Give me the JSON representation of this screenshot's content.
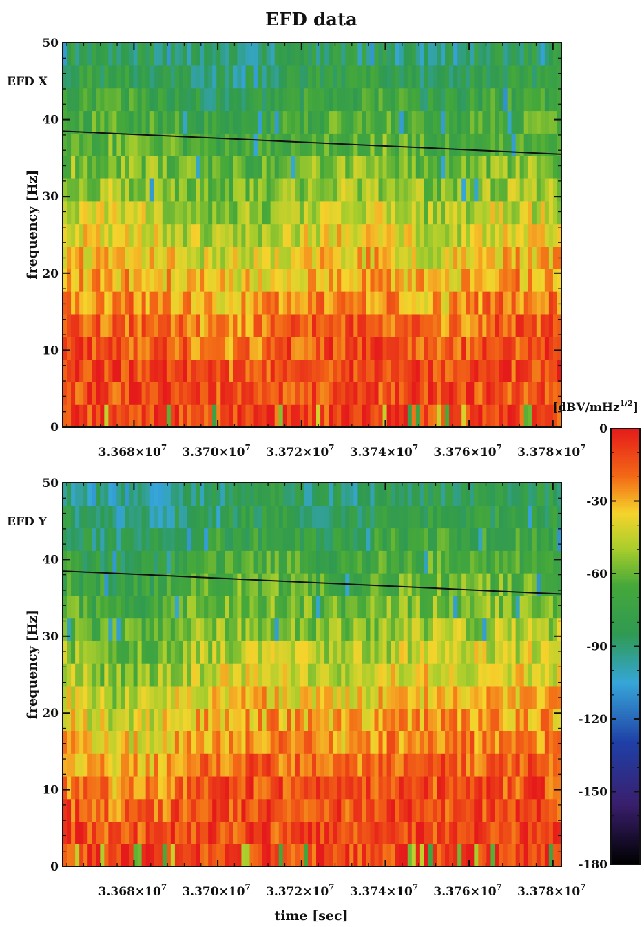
{
  "chart_data": {
    "type": "heatmap",
    "title": "EFD data",
    "colormap_stops": [
      {
        "value": 0,
        "color": "#e51a1a"
      },
      {
        "value": -20,
        "color": "#f36a16"
      },
      {
        "value": -35,
        "color": "#f5d42c"
      },
      {
        "value": -50,
        "color": "#a7cd2c"
      },
      {
        "value": -65,
        "color": "#45a83a"
      },
      {
        "value": -85,
        "color": "#2f9a52"
      },
      {
        "value": -105,
        "color": "#36a6d8"
      },
      {
        "value": -130,
        "color": "#1f3fa6"
      },
      {
        "value": -155,
        "color": "#3a1f6e"
      },
      {
        "value": -180,
        "color": "#000000"
      }
    ],
    "colorbar": {
      "label": "[dBV/mHz^1/2]",
      "label_main": "[dBV/mHz",
      "label_sup": "1/2",
      "label_end": "]",
      "range": [
        -180,
        0
      ],
      "ticks": [
        "0",
        "-30",
        "-60",
        "-90",
        "-120",
        "-150",
        "-180"
      ],
      "tick_values": [
        0,
        -30,
        -60,
        -90,
        -120,
        -150,
        -180
      ]
    },
    "time_bins": 120,
    "freq_bins": 17,
    "panels": [
      {
        "label": "EFD X",
        "ylabel": "frequency [Hz]",
        "xlabel": "",
        "xlim": [
          33663000,
          33782000
        ],
        "ylim": [
          0,
          50
        ],
        "x_ticks": [
          {
            "value": 33680000,
            "mantissa": "3.368",
            "exp": "7"
          },
          {
            "value": 33700000,
            "mantissa": "3.370",
            "exp": "7"
          },
          {
            "value": 33720000,
            "mantissa": "3.372",
            "exp": "7"
          },
          {
            "value": 33740000,
            "mantissa": "3.374",
            "exp": "7"
          },
          {
            "value": 33760000,
            "mantissa": "3.376",
            "exp": "7"
          },
          {
            "value": 33780000,
            "mantissa": "3.378",
            "exp": "7"
          }
        ],
        "y_ticks": [
          0,
          10,
          20,
          30,
          40,
          50
        ],
        "overlay_line": {
          "x": [
            33663000,
            33782000
          ],
          "y": [
            38.5,
            35.5
          ]
        },
        "seed": 17
      },
      {
        "label": "EFD Y",
        "ylabel": "frequency [Hz]",
        "xlabel": "time [sec]",
        "xlim": [
          33663000,
          33782000
        ],
        "ylim": [
          0,
          50
        ],
        "x_ticks": [
          {
            "value": 33680000,
            "mantissa": "3.368",
            "exp": "7"
          },
          {
            "value": 33700000,
            "mantissa": "3.370",
            "exp": "7"
          },
          {
            "value": 33720000,
            "mantissa": "3.372",
            "exp": "7"
          },
          {
            "value": 33740000,
            "mantissa": "3.374",
            "exp": "7"
          },
          {
            "value": 33760000,
            "mantissa": "3.376",
            "exp": "7"
          },
          {
            "value": 33780000,
            "mantissa": "3.378",
            "exp": "7"
          }
        ],
        "y_ticks": [
          0,
          10,
          20,
          30,
          40,
          50
        ],
        "overlay_line": {
          "x": [
            33663000,
            33782000
          ],
          "y": [
            38.5,
            35.5
          ]
        },
        "seed": 29
      }
    ]
  }
}
